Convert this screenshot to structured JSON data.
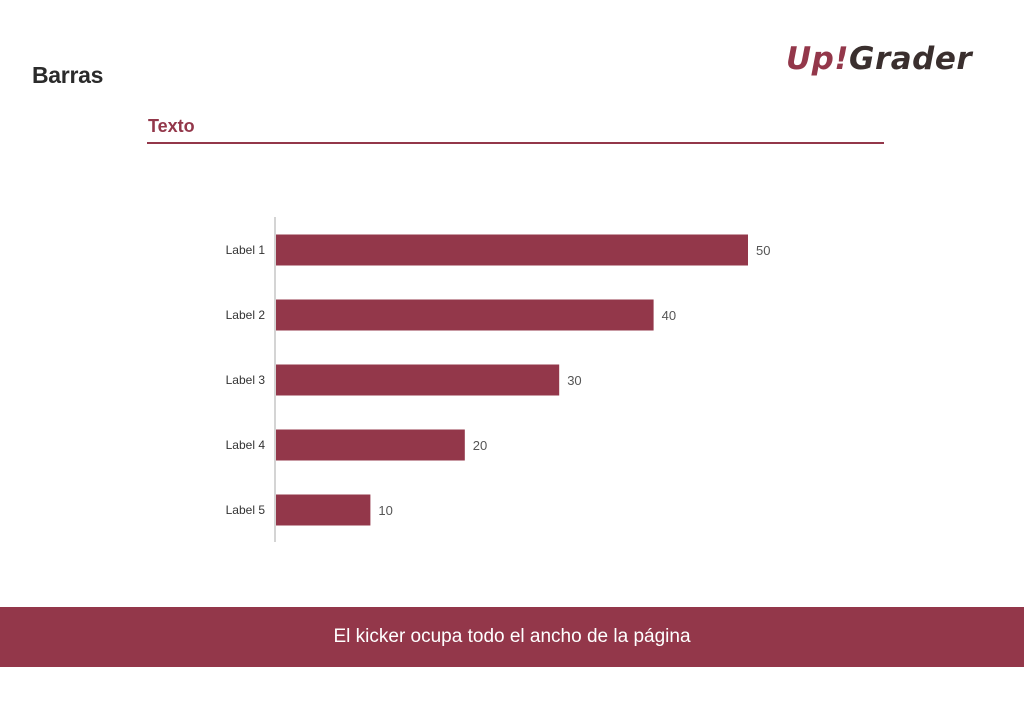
{
  "page": {
    "title": "Barras"
  },
  "logo": {
    "part1": "Up",
    "part2": "!",
    "part3": "Grader"
  },
  "section": {
    "title": "Texto"
  },
  "kicker": {
    "text": "El kicker ocupa todo el ancho de la página"
  },
  "colors": {
    "accent": "#93374a",
    "logo_dark": "#3a2f2e",
    "axis": "#aaaaaa"
  },
  "chart_data": {
    "type": "bar",
    "orientation": "horizontal",
    "categories": [
      "Label 1",
      "Label 2",
      "Label 3",
      "Label 4",
      "Label 5"
    ],
    "values": [
      50,
      40,
      30,
      20,
      10
    ],
    "title": "",
    "xlabel": "",
    "ylabel": "",
    "xlim": [
      0,
      50
    ],
    "grid": false,
    "data_labels": true
  }
}
